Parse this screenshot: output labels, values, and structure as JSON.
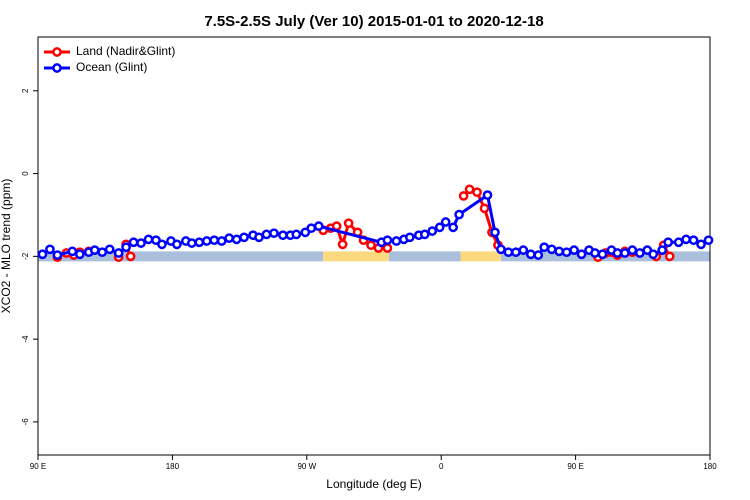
{
  "chart_data": {
    "type": "line",
    "title": "7.5S-2.5S July (Ver 10)   2015-01-01 to 2020-12-18",
    "xlabel": "Longitude (deg E)",
    "ylabel": "XCO2 - MLO trend (ppm)",
    "xlim": [
      90,
      540
    ],
    "ylim": [
      -6.8,
      3.3
    ],
    "xticks": [
      {
        "value": 90,
        "label": "90 E"
      },
      {
        "value": 180,
        "label": "180"
      },
      {
        "value": 270,
        "label": "90 W"
      },
      {
        "value": 360,
        "label": "0"
      },
      {
        "value": 450,
        "label": "90 E"
      },
      {
        "value": 540,
        "label": "180"
      }
    ],
    "yticks": [
      -6,
      -4,
      -2,
      0,
      2
    ],
    "legend": "top-left",
    "band_y": -2,
    "bands": [
      {
        "x": [
          90,
          281
        ],
        "color": "#a9bfdc"
      },
      {
        "x": [
          281,
          325
        ],
        "color": "#fcd97f"
      },
      {
        "x": [
          325,
          373
        ],
        "color": "#a9bfdc"
      },
      {
        "x": [
          373,
          400
        ],
        "color": "#fcd97f"
      },
      {
        "x": [
          400,
          540
        ],
        "color": "#a9bfdc"
      }
    ],
    "series": [
      {
        "name": "Land (Nadir&Glint)",
        "color": "#ff0000",
        "x": [
          103,
          109,
          114,
          118,
          124,
          null,
          144,
          149,
          152,
          null,
          281,
          286,
          290,
          294,
          298,
          304,
          308,
          313,
          318,
          324,
          null,
          375,
          379,
          384,
          389,
          394,
          398,
          null,
          465,
          470,
          474,
          478,
          483,
          488,
          null,
          504,
          509,
          513
        ],
        "values": [
          -2.02,
          -1.92,
          -1.97,
          -1.9,
          -1.88,
          null,
          -2.02,
          -1.71,
          -2.0,
          null,
          -1.37,
          -1.32,
          -1.27,
          -1.71,
          -1.2,
          -1.42,
          -1.61,
          -1.73,
          -1.8,
          -1.8,
          null,
          -0.54,
          -0.38,
          -0.45,
          -0.84,
          -1.42,
          -1.73,
          null,
          -2.02,
          -1.92,
          -1.9,
          -1.97,
          -1.88,
          -1.9,
          null,
          -2.0,
          -1.73,
          -2.0
        ]
      },
      {
        "name": "Ocean (Glint)",
        "color": "#0000ff",
        "x": [
          93,
          98,
          103,
          113,
          118,
          124,
          128,
          133,
          138,
          144,
          149,
          154,
          159,
          164,
          169,
          173,
          179,
          183,
          189,
          193,
          198,
          203,
          208,
          213,
          218,
          223,
          228,
          234,
          238,
          243,
          248,
          254,
          259,
          263,
          269,
          273,
          278,
          320,
          324,
          330,
          335,
          339,
          345,
          349,
          354,
          359,
          363,
          368,
          372,
          391,
          396,
          400,
          405,
          410,
          415,
          420,
          425,
          429,
          434,
          439,
          444,
          449,
          454,
          459,
          463,
          468,
          474,
          478,
          483,
          488,
          493,
          498,
          502,
          508,
          512,
          519,
          524,
          529,
          534,
          539
        ],
        "values": [
          -1.95,
          -1.83,
          -1.97,
          -1.88,
          -1.95,
          -1.9,
          -1.85,
          -1.9,
          -1.83,
          -1.92,
          -1.78,
          -1.66,
          -1.68,
          -1.59,
          -1.61,
          -1.71,
          -1.63,
          -1.71,
          -1.63,
          -1.68,
          -1.66,
          -1.63,
          -1.61,
          -1.63,
          -1.56,
          -1.59,
          -1.54,
          -1.49,
          -1.54,
          -1.47,
          -1.44,
          -1.49,
          -1.49,
          -1.47,
          -1.42,
          -1.32,
          -1.27,
          -1.66,
          -1.61,
          -1.63,
          -1.59,
          -1.54,
          -1.49,
          -1.47,
          -1.39,
          -1.3,
          -1.17,
          -1.3,
          -0.99,
          -0.52,
          -1.42,
          -1.83,
          -1.9,
          -1.9,
          -1.85,
          -1.95,
          -1.97,
          -1.78,
          -1.83,
          -1.88,
          -1.9,
          -1.85,
          -1.95,
          -1.85,
          -1.92,
          -1.95,
          -1.85,
          -1.92,
          -1.92,
          -1.85,
          -1.92,
          -1.85,
          -1.95,
          -1.85,
          -1.66,
          -1.66,
          -1.59,
          -1.61,
          -1.71,
          -1.61
        ]
      }
    ]
  }
}
